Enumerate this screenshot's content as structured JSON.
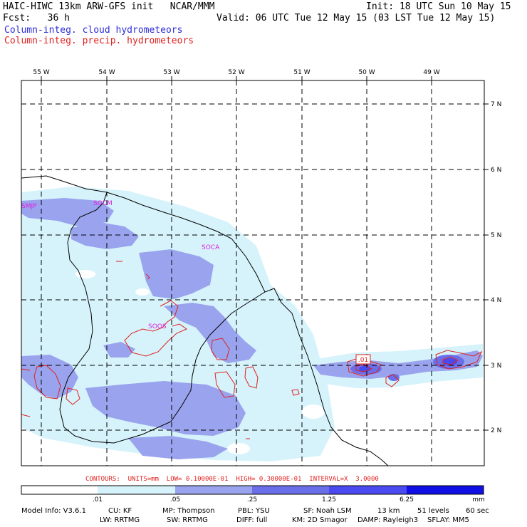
{
  "header": {
    "line1_left": "HAIC-HIWC 13km ARW-GFS init   NCAR/MMM",
    "line1_right": "Init: 18 UTC Sun 10 May 15",
    "line2_left": "Fcst:   36 h",
    "line2_right": "Valid: 06 UTC Tue 12 May 15 (03 LST Tue 12 May 15)",
    "legend_cloud": "Column-integ. cloud hydrometeors",
    "legend_precip": "Column-integ. precip. hydrometeors"
  },
  "colors": {
    "cloud_text": "#2b2bd8",
    "precip_text": "#e0201e",
    "contour": "#e0201e",
    "station": "#dd22dd",
    "fill_level_1": "#d6f3fb",
    "fill_level_2": "#9aa4ee",
    "fill_level_3": "#6a6ee8",
    "fill_level_4": "#4a4af0",
    "fill_level_5": "#1010e6"
  },
  "map": {
    "lon_labels": [
      "55 W",
      "54 W",
      "53 W",
      "52 W",
      "51 W",
      "50 W",
      "49 W"
    ],
    "lat_labels": [
      "7 N",
      "6 N",
      "5 N",
      "4 N",
      "3 N",
      "2 N"
    ],
    "stations": [
      "SMJP",
      "SOCM",
      "SOCA",
      "SOOS"
    ],
    "contour_label": ".01"
  },
  "contours_info": "CONTOURS:  UNITS=mm  LOW= 0.10000E-01  HIGH= 0.30000E-01  INTERVAL=X  3.0000",
  "colorbar": {
    "labels": [
      ".01",
      ".05",
      ".25",
      "1.25",
      "6.25"
    ],
    "units": "mm"
  },
  "footer": {
    "line1": [
      "Model Info: V3.6.1",
      "CU: KF",
      "MP: Thompson",
      "PBL: YSU",
      "SF: Noah LSM",
      "13 km",
      "51 levels",
      "60 sec"
    ],
    "line2": [
      "LW: RRTMG",
      "SW: RRTMG",
      "DIFF: full",
      "KM: 2D Smagor",
      "DAMP: Rayleigh3",
      "SFLAY: MM5"
    ]
  }
}
